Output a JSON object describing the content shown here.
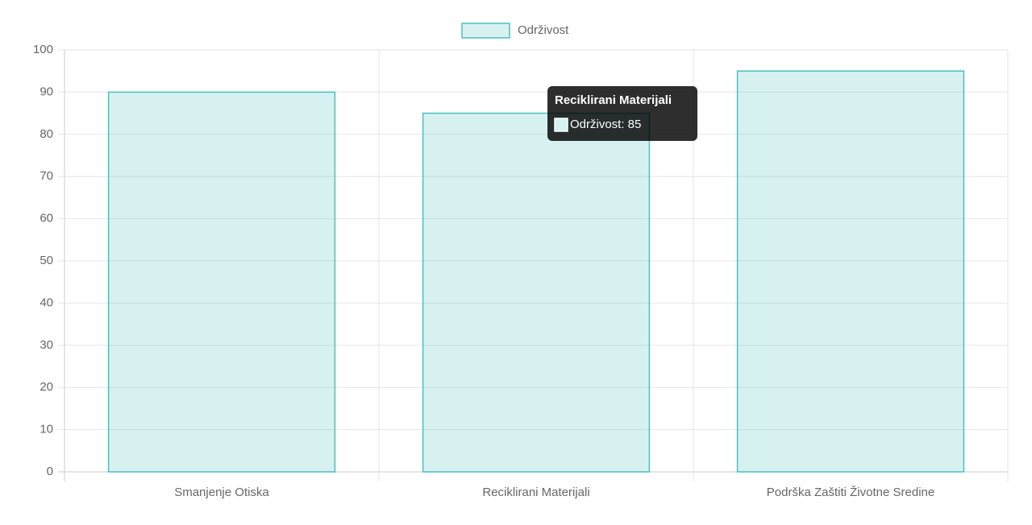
{
  "chart_data": {
    "type": "bar",
    "categories": [
      "Smanjenje Otiska",
      "Reciklirani Materijali",
      "Podrška Zaštiti Životne Sredine"
    ],
    "series": [
      {
        "name": "Održivost",
        "color": "#4bc0c0",
        "values": [
          90,
          85,
          95
        ]
      }
    ],
    "ylim": [
      0,
      100
    ],
    "yticks": [
      0,
      10,
      20,
      30,
      40,
      50,
      60,
      70,
      80,
      90,
      100
    ],
    "grid": true,
    "legend": "top",
    "tooltip": {
      "title": "Reciklirani Materijali",
      "body": "Održivost: 85"
    }
  }
}
